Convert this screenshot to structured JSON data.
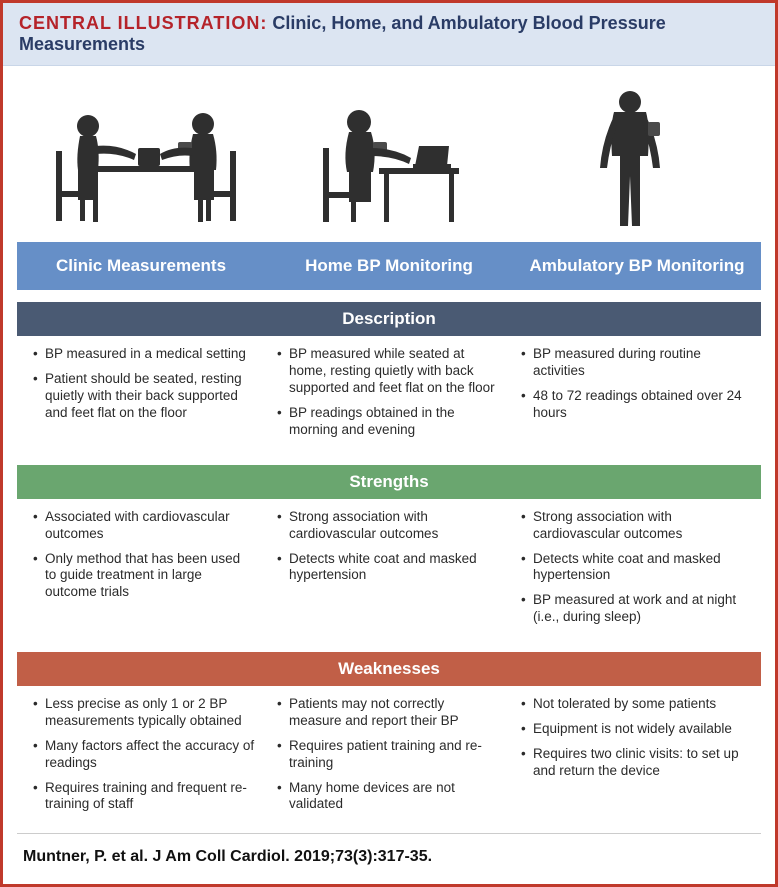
{
  "title": {
    "lead": "CENTRAL ILLUSTRATION:",
    "rest": " Clinic, Home, and Ambulatory Blood Pressure Measurements"
  },
  "columns": {
    "c1": "Clinic Measurements",
    "c2": "Home BP Monitoring",
    "c3": "Ambulatory BP Monitoring"
  },
  "sections": {
    "description": {
      "label": "Description",
      "color": "#4a5a73",
      "c1": [
        "BP measured in a medical setting",
        "Patient should be seated, resting quietly with their back supported and feet flat on the floor"
      ],
      "c2": [
        "BP measured while seated at home, resting quietly with back supported and feet flat on the floor",
        "BP readings obtained in the morning and evening"
      ],
      "c3": [
        "BP measured during routine activities",
        "48 to 72 readings obtained over 24 hours"
      ]
    },
    "strengths": {
      "label": "Strengths",
      "color": "#6aa66f",
      "c1": [
        "Associated with cardiovascular outcomes",
        "Only method that has been used to guide treatment in large outcome trials"
      ],
      "c2": [
        "Strong association with cardiovascular outcomes",
        "Detects white coat and masked hypertension"
      ],
      "c3": [
        "Strong association with cardiovascular outcomes",
        "Detects white coat and masked hypertension",
        "BP measured at work and at night (i.e., during sleep)"
      ]
    },
    "weaknesses": {
      "label": "Weaknesses",
      "color": "#c15f47",
      "c1": [
        "Less precise as only 1 or 2 BP measurements typically obtained",
        "Many factors affect the accuracy of readings",
        "Requires training and frequent re-training of staff"
      ],
      "c2": [
        "Patients may not correctly measure and report their BP",
        "Requires patient training and re-training",
        "Many home devices are not validated"
      ],
      "c3": [
        "Not tolerated by some patients",
        "Equipment is not widely available",
        "Requires two clinic visits: to set up and return the device"
      ]
    }
  },
  "citation": "Muntner, P. et al. J Am Coll Cardiol. 2019;73(3):317-35.",
  "style": {
    "border_color": "#c0392b",
    "title_bg": "#dce5f2",
    "title_lead_color": "#b5232a",
    "title_rest_color": "#2a3c66",
    "col_header_bg": "#668fc7",
    "silhouette_color": "#2f2f2f"
  }
}
